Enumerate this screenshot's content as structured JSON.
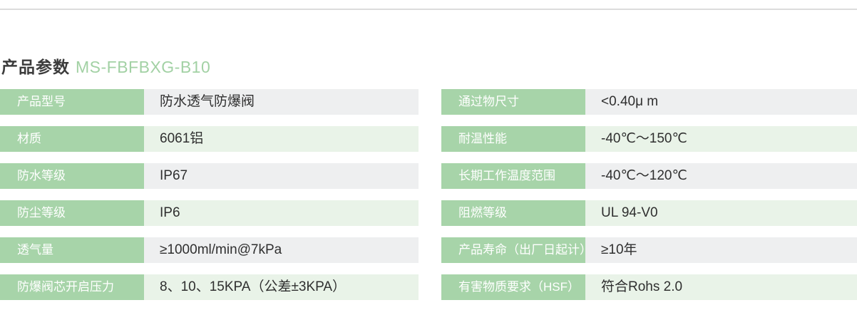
{
  "page": {
    "background": "#ffffff",
    "divider_color": "#dcdcdc"
  },
  "header": {
    "title": "产品参数",
    "model": "MS-FBFBXG-B10",
    "title_color": "#3c3c3c",
    "model_color": "#a2d1a4"
  },
  "table": {
    "label_bg": "#a7d4a9",
    "label_text_color": "#ffffff",
    "value_text_color": "#2f2f2f",
    "row_bg_gray": "#eeeff0",
    "row_bg_green": "#e9f3e8",
    "columns": [
      {
        "rows": [
          {
            "label": "产品型号",
            "value": "防水透气防爆阀"
          },
          {
            "label": "材质",
            "value": "6061铝"
          },
          {
            "label": "防水等级",
            "value": "IP67"
          },
          {
            "label": "防尘等级",
            "value": "IP6"
          },
          {
            "label": "透气量",
            "value": "≥1000ml/min@7kPa"
          },
          {
            "label": "防爆阀芯开启压力",
            "value": "8、10、15KPA（公差±3KPA）"
          }
        ]
      },
      {
        "rows": [
          {
            "label": "通过物尺寸",
            "value": "<0.40μ m"
          },
          {
            "label": "耐温性能",
            "value": "-40℃～150℃"
          },
          {
            "label": "长期工作温度范围",
            "value": "-40℃～120℃"
          },
          {
            "label": "阻燃等级",
            "value": "UL 94-V0"
          },
          {
            "label": "产品寿命（出厂日起计）",
            "value": "≥10年"
          },
          {
            "label": "有害物质要求（HSF）",
            "value": "符合Rohs 2.0"
          }
        ]
      }
    ]
  }
}
